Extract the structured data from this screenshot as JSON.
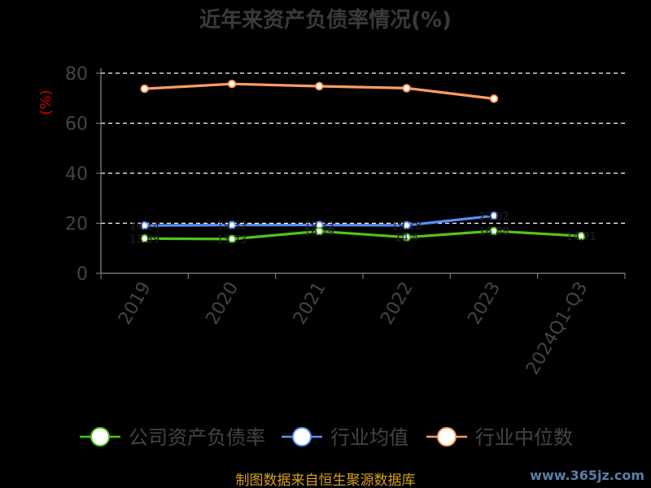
{
  "chart_data": {
    "type": "line",
    "title": "近年来资产负债率情况(%)",
    "ylabel": "(%)",
    "xlabel": "",
    "categories": [
      "2019",
      "2020",
      "2021",
      "2022",
      "2023",
      "2024Q1-Q3"
    ],
    "ylim": [
      0,
      80
    ],
    "yticks": [
      "0",
      "20",
      "40",
      "60",
      "80"
    ],
    "grid": true,
    "legend_position": "bottom",
    "series": [
      {
        "name": "公司资产负债率",
        "color": "#52c41a",
        "values": [
          13.9,
          13.7,
          16.8,
          14.4,
          16.9,
          14.9
        ],
        "labels": [
          "13.89",
          "13.73",
          "16.79",
          "14.4",
          "16.88",
          "14.91"
        ]
      },
      {
        "name": "行业均值",
        "color": "#5b8ff9",
        "values": [
          19.1,
          19.3,
          19.3,
          19.2,
          23.0,
          null
        ],
        "labels": [
          "19.14",
          "19.33",
          "19.33",
          "19.18",
          "23.02",
          ""
        ]
      },
      {
        "name": "行业中位数",
        "color": "#ff9d62",
        "values": [
          73.8,
          75.7,
          74.8,
          74.0,
          69.8,
          null
        ],
        "labels": [
          "",
          "",
          "",
          "",
          "",
          ""
        ]
      }
    ]
  },
  "footer": {
    "source": "制图数据来自恒生聚源数据库",
    "watermark": "www.365jz.com"
  }
}
